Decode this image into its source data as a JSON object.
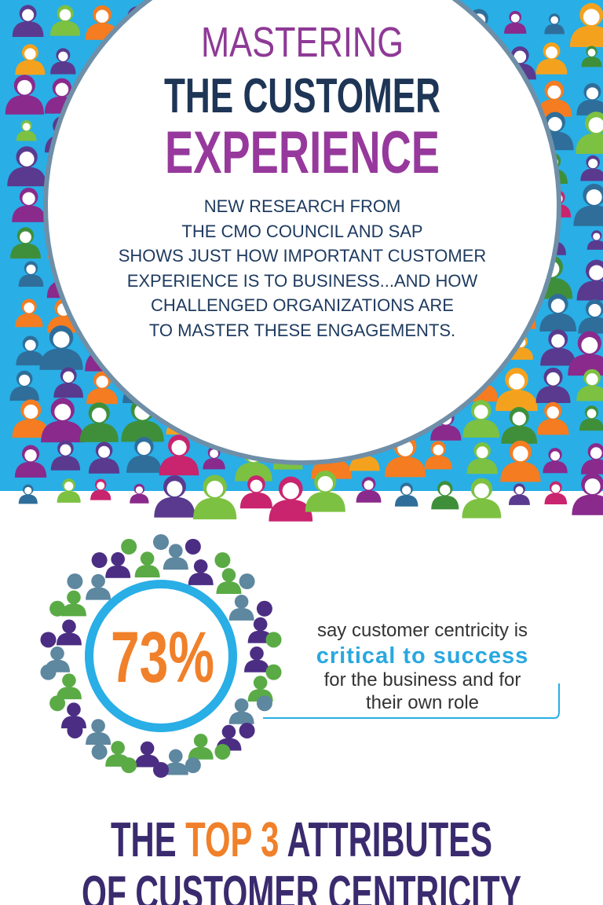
{
  "header": {
    "title": [
      "MASTERING",
      "THE CUSTOMER",
      "EXPERIENCE"
    ],
    "intro": [
      "NEW RESEARCH FROM",
      "THE CMO COUNCIL AND SAP",
      "SHOWS JUST HOW IMPORTANT CUSTOMER",
      "EXPERIENCE IS TO BUSINESS...AND HOW",
      "CHALLENGED ORGANIZATIONS ARE",
      "TO MASTER THESE ENGAGEMENTS."
    ]
  },
  "stat": {
    "value": "73%",
    "text": [
      "say customer centricity is",
      "critical to success",
      "for the business and for",
      "their own role"
    ]
  },
  "section": {
    "title": [
      "THE ",
      "TOP 3",
      " ATTRIBUTES",
      "OF CUSTOMER CENTRICITY"
    ]
  }
}
